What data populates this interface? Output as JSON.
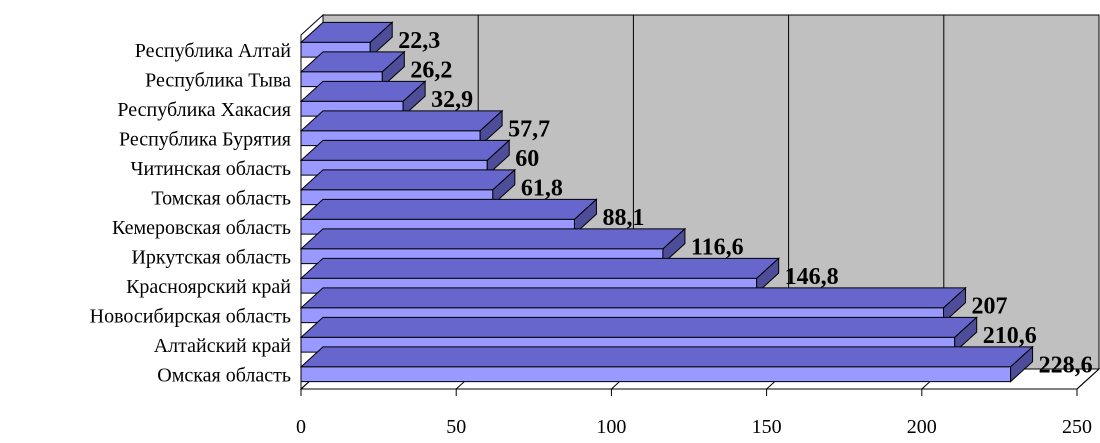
{
  "chart_data": {
    "type": "bar",
    "orientation": "horizontal",
    "title": "",
    "xlabel": "",
    "ylabel": "",
    "categories": [
      "Республика Алтай",
      "Республика Тыва",
      "Республика Хакасия",
      "Республика Бурятия",
      "Читинская область",
      "Томская область",
      "Кемеровская область",
      "Иркутская область",
      "Красноярский край",
      "Новосибирская область",
      "Алтайский край",
      "Омская область"
    ],
    "values": [
      22.3,
      26.2,
      32.9,
      57.7,
      60,
      61.8,
      88.1,
      116.6,
      146.8,
      207,
      210.6,
      228.6
    ],
    "value_labels": [
      "22,3",
      "26,2",
      "32,9",
      "57,7",
      "60",
      "61,8",
      "88,1",
      "116,6",
      "146,8",
      "207",
      "210,6",
      "228,6"
    ],
    "xlim": [
      0,
      250
    ],
    "x_ticks": [
      0,
      50,
      100,
      150,
      200,
      250
    ],
    "x_tick_labels": [
      "0",
      "50",
      "100",
      "150",
      "200",
      "250"
    ],
    "grid": true,
    "style_3d": true,
    "colors": {
      "plot_background": "#c0c0c0",
      "gridline": "#000000",
      "bar_front": "#9999ff",
      "bar_top": "#6666cc",
      "bar_side": "#4d4d99",
      "floor": "#ffffff"
    }
  }
}
